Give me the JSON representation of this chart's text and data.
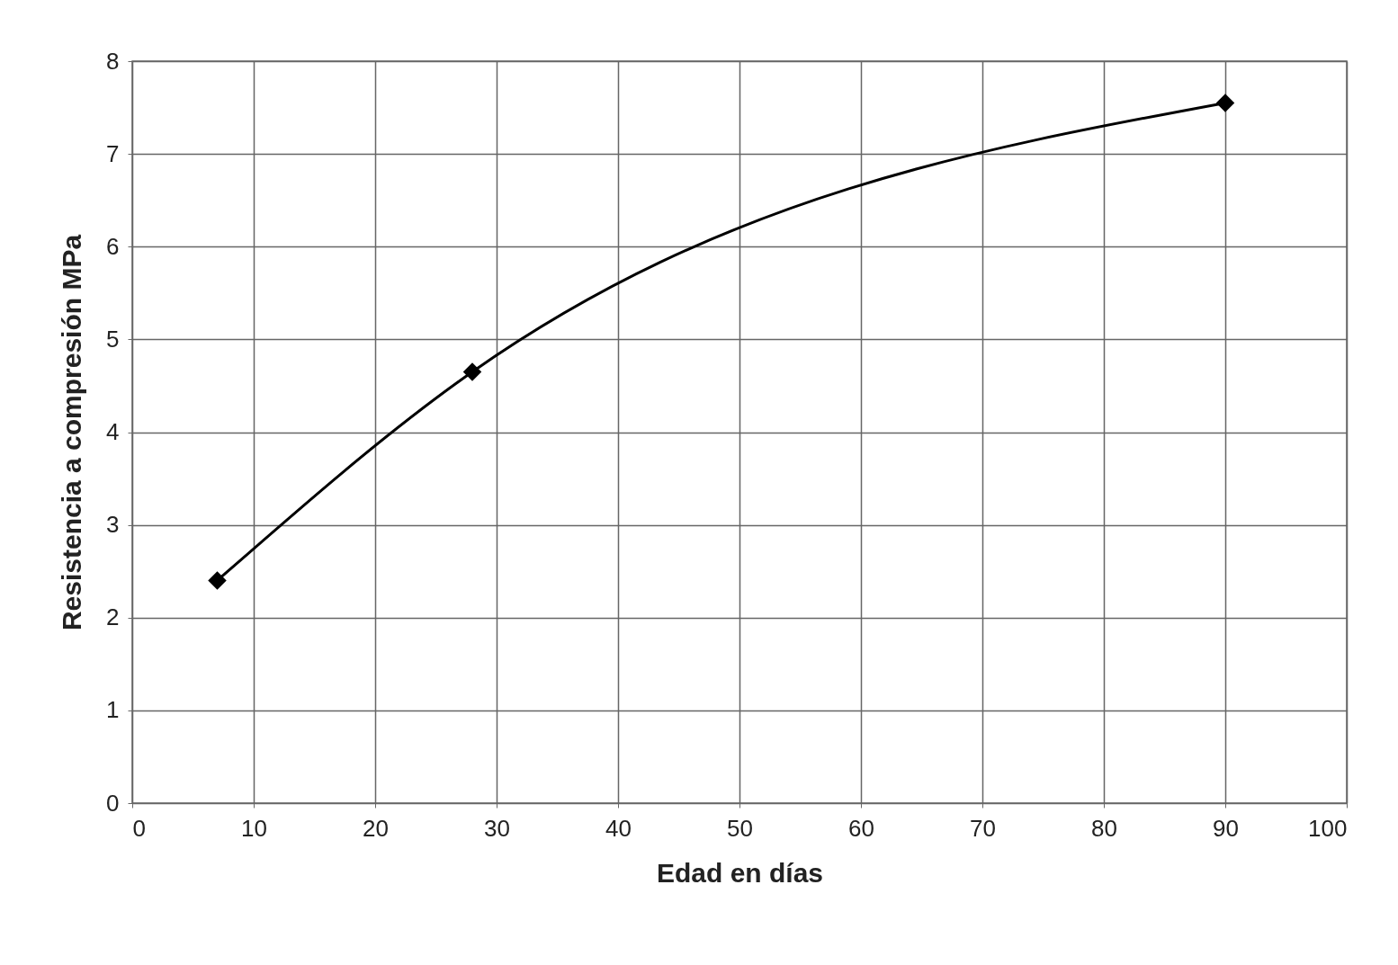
{
  "chart_data": {
    "type": "line",
    "xlabel": "Edad en días",
    "ylabel": "Resistencia a compresión MPa",
    "x": [
      7,
      28,
      90
    ],
    "series": [
      {
        "color": "#000000",
        "values": [
          2.4,
          4.65,
          7.55
        ]
      }
    ],
    "xlim": [
      0,
      100
    ],
    "xticks": [
      0,
      10,
      20,
      30,
      40,
      50,
      60,
      70,
      80,
      90,
      100
    ],
    "ylim": [
      0,
      8
    ],
    "yticks": [
      0,
      1,
      2,
      3,
      4,
      5,
      6,
      7,
      8
    ],
    "grid": true,
    "marker": "diamond",
    "line_style": "solid"
  }
}
